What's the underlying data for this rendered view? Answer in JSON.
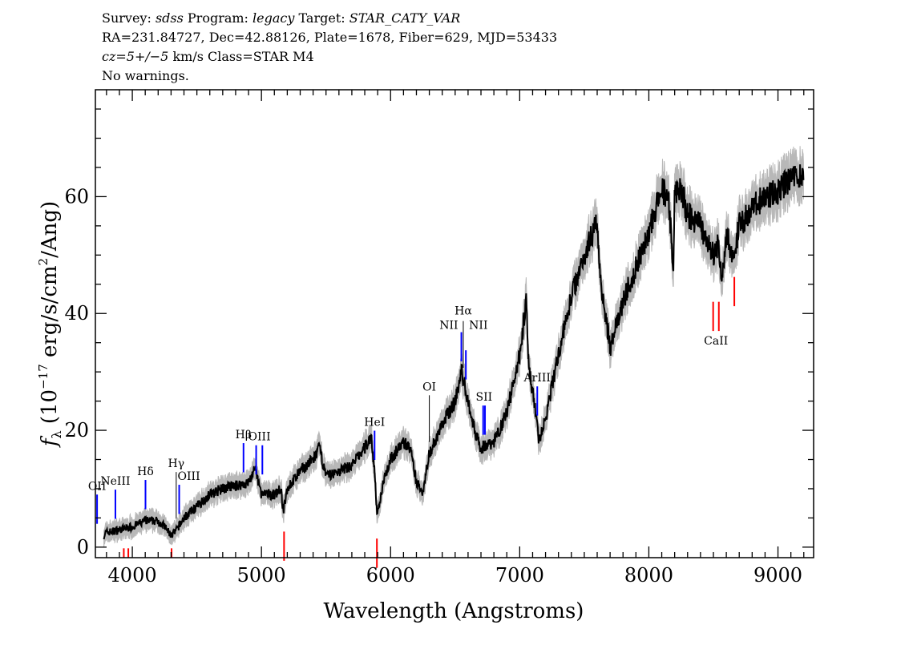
{
  "header": {
    "line1": {
      "survey_label": "Survey: ",
      "survey": "sdss",
      "program_label": " Program: ",
      "program": "legacy",
      "target_label": " Target: ",
      "target": "STAR_CATY_VAR"
    },
    "line2": "RA=231.84727, Dec=42.88126, Plate=1678, Fiber=629, MJD=53433",
    "line3": {
      "cz": "cz=5+/−5",
      "rest": " km/s Class=STAR M4"
    },
    "line4": "No warnings."
  },
  "chart_data": {
    "type": "line",
    "xlabel": "Wavelength (Angstroms)",
    "ylabel": {
      "f": "f",
      "sub": "λ",
      "a": " (10",
      "exp": "−17",
      "b": " erg/s/cm",
      "exp2": "2",
      "c": "/Ang)"
    },
    "xlim": [
      3714,
      9276
    ],
    "ylim": [
      -1.8,
      78.3
    ],
    "xticks": [
      4000,
      5000,
      6000,
      7000,
      8000,
      9000
    ],
    "xtick_labels": [
      "4000",
      "5000",
      "6000",
      "7000",
      "8000",
      "9000"
    ],
    "yticks": [
      0,
      20,
      40,
      60
    ],
    "ytick_labels": [
      "0",
      "20",
      "40",
      "60"
    ],
    "grid": false,
    "colors": {
      "spectrum": "#000000",
      "error_band": "#b8b8b8",
      "emission": "#0000ff",
      "absorption": "#ff0000",
      "sky": "#000000"
    },
    "spectrum": {
      "x": [
        3780,
        3800,
        3900,
        4000,
        4100,
        4200,
        4250,
        4300,
        4330,
        4400,
        4500,
        4600,
        4700,
        4800,
        4900,
        4950,
        5000,
        5100,
        5150,
        5170,
        5200,
        5300,
        5400,
        5450,
        5500,
        5600,
        5700,
        5800,
        5850,
        5880,
        5895,
        5950,
        6000,
        6100,
        6150,
        6200,
        6250,
        6300,
        6400,
        6500,
        6550,
        6600,
        6650,
        6700,
        6800,
        6900,
        7000,
        7050,
        7070,
        7100,
        7150,
        7200,
        7300,
        7400,
        7500,
        7600,
        7620,
        7700,
        7800,
        7900,
        8000,
        8100,
        8150,
        8190,
        8200,
        8250,
        8300,
        8400,
        8500,
        8540,
        8560,
        8600,
        8660,
        8700,
        8800,
        8900,
        9000,
        9100,
        9150,
        9200
      ],
      "y": [
        2,
        2.5,
        3,
        3.5,
        4.5,
        4.5,
        3.5,
        2,
        2.5,
        5,
        7,
        9,
        10,
        10.5,
        11,
        13.5,
        9,
        9,
        10,
        6,
        10,
        13,
        15,
        17,
        12,
        13,
        14,
        17,
        19,
        12,
        5,
        12,
        15,
        18,
        17,
        11,
        9.5,
        16,
        21,
        25,
        30,
        25,
        20,
        17,
        18,
        23,
        33,
        42,
        30,
        27,
        18,
        22,
        33,
        43,
        50,
        56,
        47,
        34,
        42,
        48,
        54,
        61,
        60,
        48,
        60,
        61,
        57,
        55,
        50,
        52,
        46,
        53,
        50,
        55,
        58,
        60,
        61,
        63,
        64,
        62
      ]
    },
    "lines": [
      {
        "label": "OII",
        "wave": 3727,
        "kind": "emission"
      },
      {
        "label": "NeIII",
        "wave": 3869,
        "kind": "emission"
      },
      {
        "label": "Hδ",
        "wave": 4102,
        "kind": "emission"
      },
      {
        "label": "Hγ",
        "wave": 4340,
        "kind": "sky"
      },
      {
        "label": "OIII",
        "wave": 4363,
        "kind": "emission"
      },
      {
        "label": "Hβ",
        "wave": 4861,
        "kind": "emission"
      },
      {
        "label": "OIII",
        "wave": 4984,
        "kind": "emission",
        "pair": [
          4959,
          5007
        ]
      },
      {
        "label": "HeI",
        "wave": 5876,
        "kind": "emission"
      },
      {
        "label": "OI",
        "wave": 6300,
        "kind": "sky"
      },
      {
        "label": "NII",
        "wave": 6548,
        "kind": "emission"
      },
      {
        "label": "Hα",
        "wave": 6563,
        "kind": "sky"
      },
      {
        "label": "NII",
        "wave": 6583,
        "kind": "emission"
      },
      {
        "label": "SII",
        "wave": 6724,
        "kind": "emission",
        "pair": [
          6717,
          6731
        ]
      },
      {
        "label": "ArIII",
        "wave": 7136,
        "kind": "emission"
      },
      {
        "label": "CaII",
        "wave": 8520,
        "kind": "absorption",
        "pair": [
          8498,
          8542
        ]
      },
      {
        "label": "",
        "wave": 8662,
        "kind": "absorption"
      },
      {
        "label": "",
        "wave": 3934,
        "kind": "absorption"
      },
      {
        "label": "",
        "wave": 3969,
        "kind": "absorption"
      },
      {
        "label": "",
        "wave": 4304,
        "kind": "absorption"
      },
      {
        "label": "",
        "wave": 5175,
        "kind": "absorption"
      },
      {
        "label": "",
        "wave": 5894,
        "kind": "absorption"
      }
    ]
  }
}
